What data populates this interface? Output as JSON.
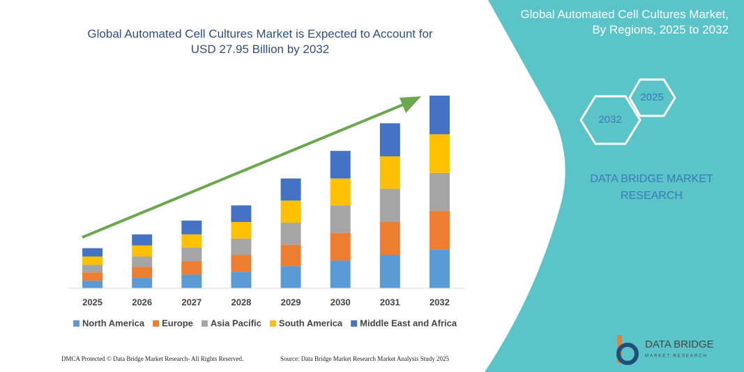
{
  "chart_data": {
    "type": "stacked-bar",
    "title": "Global Automated Cell Cultures Market is Expected to Account for USD 27.95 Billion by 2032",
    "categories": [
      "2025",
      "2026",
      "2027",
      "2028",
      "2029",
      "2030",
      "2031",
      "2032"
    ],
    "series": [
      {
        "name": "North America",
        "color": "#5b9bd5",
        "values": [
          1.1,
          1.5,
          2.0,
          2.4,
          3.2,
          4.0,
          4.8,
          5.6
        ]
      },
      {
        "name": "Europe",
        "color": "#ed7d31",
        "values": [
          1.2,
          1.6,
          1.9,
          2.4,
          3.1,
          4.0,
          4.8,
          5.6
        ]
      },
      {
        "name": "Asia Pacific",
        "color": "#a5a5a5",
        "values": [
          1.1,
          1.5,
          2.0,
          2.4,
          3.2,
          4.0,
          4.8,
          5.5
        ]
      },
      {
        "name": "South America",
        "color": "#ffc000",
        "values": [
          1.2,
          1.6,
          1.9,
          2.4,
          3.2,
          3.9,
          4.7,
          5.6
        ]
      },
      {
        "name": "Middle East and Africa",
        "color": "#4472c4",
        "values": [
          1.2,
          1.6,
          2.0,
          2.4,
          3.2,
          4.0,
          4.8,
          5.6
        ]
      }
    ],
    "legend": "bottom"
  },
  "panel": {
    "title": "Global Automated Cell Cultures Market, By Regions, 2025 to 2032",
    "hexagons": [
      "2032",
      "2025"
    ],
    "brand": "DATA BRIDGE MARKET RESEARCH"
  },
  "logo": {
    "name": "DATA BRIDGE",
    "tagline": "MARKET RESEARCH"
  },
  "footer": {
    "left": "DMCA Protected © Data Bridge Market Research- All Rights Reserved.",
    "right": "Source: Data Bridge Market Research Market Analysis Study 2025"
  }
}
